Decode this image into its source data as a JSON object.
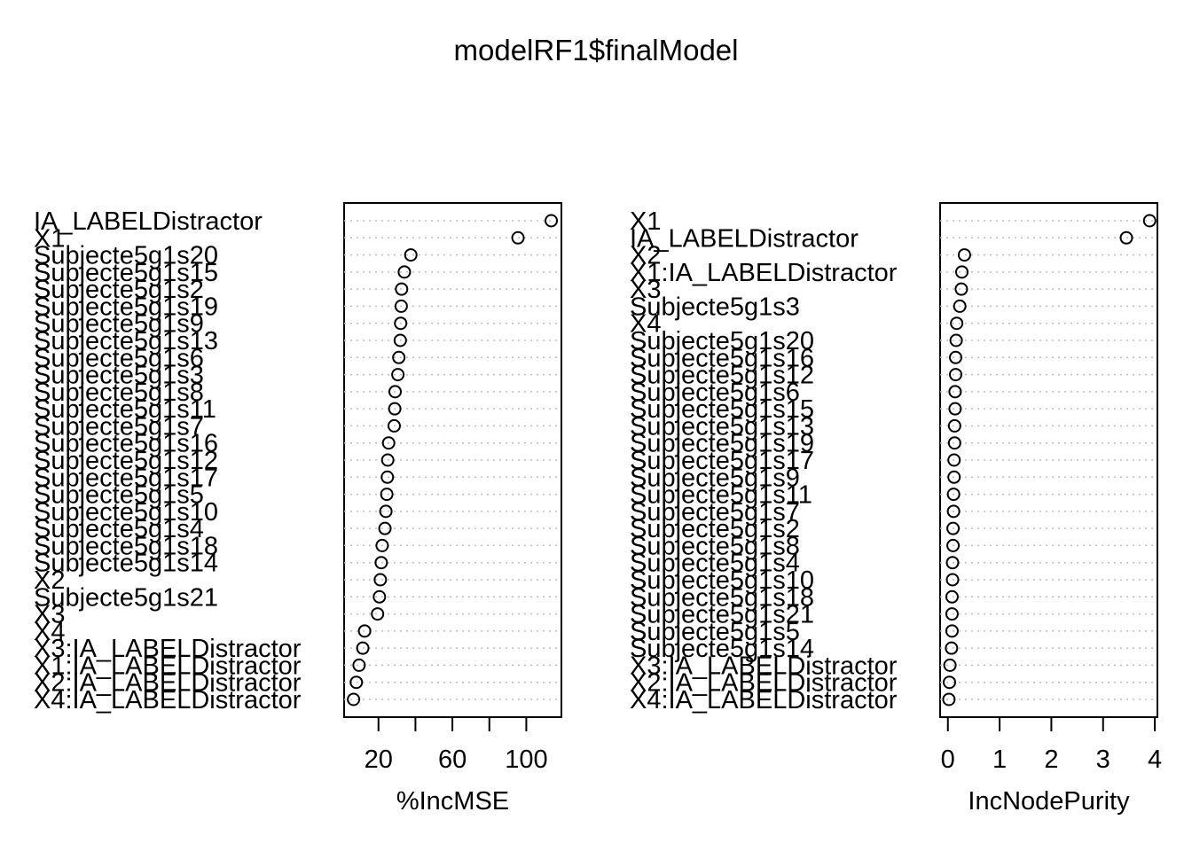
{
  "title": "modelRF1$finalModel",
  "chart_data": [
    {
      "type": "scatter",
      "xlabel": "%IncMSE",
      "xticks": [
        20,
        40,
        60,
        80,
        100
      ],
      "xtick_labels": [
        "20",
        "",
        "60",
        "",
        "100"
      ],
      "xlim": [
        1.4,
        119
      ],
      "grid": "dotted horizontal guides",
      "categories": [
        "IA_LABELDistractor",
        "X1",
        "Subjecte5g1s20",
        "Subjecte5g1s15",
        "Subjecte5g1s2",
        "Subjecte5g1s19",
        "Subjecte5g1s9",
        "Subjecte5g1s13",
        "Subjecte5g1s6",
        "Subjecte5g1s3",
        "Subjecte5g1s8",
        "Subjecte5g1s11",
        "Subjecte5g1s7",
        "Subjecte5g1s16",
        "Subjecte5g1s12",
        "Subjecte5g1s17",
        "Subjecte5g1s5",
        "Subjecte5g1s10",
        "Subjecte5g1s4",
        "Subjecte5g1s18",
        "Subjecte5g1s14",
        "X2",
        "Subjecte5g1s21",
        "X3",
        "X4",
        "X3:IA_LABELDistractor",
        "X1:IA_LABELDistractor",
        "X2:IA_LABELDistractor",
        "X4:IA_LABELDistractor"
      ],
      "values": [
        113.5,
        95.5,
        37.5,
        34.0,
        32.5,
        32.3,
        32.0,
        31.8,
        31.0,
        30.5,
        29.0,
        28.8,
        28.5,
        25.5,
        25.0,
        24.8,
        24.5,
        24.0,
        23.5,
        22.0,
        21.5,
        21.0,
        20.5,
        19.5,
        12.5,
        11.5,
        9.5,
        8.0,
        6.5
      ]
    },
    {
      "type": "scatter",
      "xlabel": "IncNodePurity",
      "xticks": [
        0,
        1,
        2,
        3,
        4
      ],
      "xtick_labels": [
        "0",
        "1",
        "2",
        "3",
        "4"
      ],
      "xlim": [
        -0.15,
        4.05
      ],
      "grid": "dotted horizontal guides",
      "categories": [
        "X1",
        "IA_LABELDistractor",
        "X2",
        "X1:IA_LABELDistractor",
        "X3",
        "Subjecte5g1s3",
        "X4",
        "Subjecte5g1s20",
        "Subjecte5g1s16",
        "Subjecte5g1s12",
        "Subjecte5g1s6",
        "Subjecte5g1s15",
        "Subjecte5g1s13",
        "Subjecte5g1s19",
        "Subjecte5g1s17",
        "Subjecte5g1s9",
        "Subjecte5g1s11",
        "Subjecte5g1s7",
        "Subjecte5g1s2",
        "Subjecte5g1s8",
        "Subjecte5g1s4",
        "Subjecte5g1s10",
        "Subjecte5g1s18",
        "Subjecte5g1s21",
        "Subjecte5g1s5",
        "Subjecte5g1s14",
        "X3:IA_LABELDistractor",
        "X2:IA_LABELDistractor",
        "X4:IA_LABELDistractor"
      ],
      "values": [
        3.9,
        3.45,
        0.32,
        0.27,
        0.26,
        0.23,
        0.17,
        0.16,
        0.15,
        0.15,
        0.14,
        0.14,
        0.13,
        0.13,
        0.12,
        0.12,
        0.11,
        0.11,
        0.1,
        0.1,
        0.09,
        0.09,
        0.08,
        0.08,
        0.08,
        0.07,
        0.04,
        0.03,
        0.02
      ]
    }
  ]
}
